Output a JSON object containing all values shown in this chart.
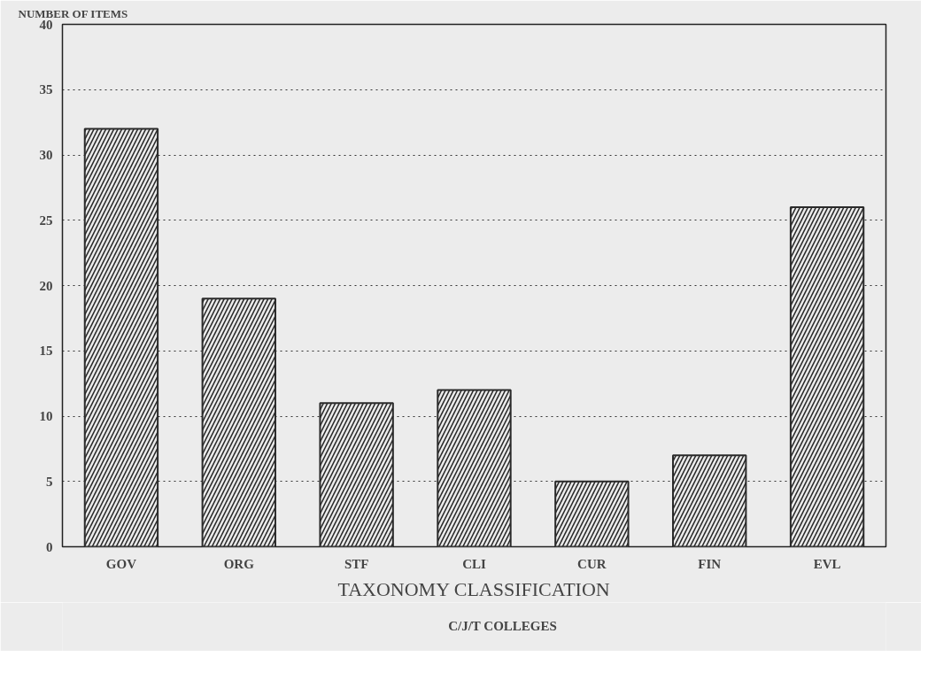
{
  "chart_data": {
    "type": "bar",
    "ylabel": "NUMBER OF ITEMS",
    "xlabel": "TAXONOMY CLASSIFICATION",
    "categories": [
      "GOV",
      "ORG",
      "STF",
      "CLI",
      "CUR",
      "FIN",
      "EVL"
    ],
    "series": [
      {
        "name": "C/J/T COLLEGES",
        "color": "#2a2a2a",
        "values": [
          32,
          19,
          11,
          12,
          5,
          7,
          26
        ]
      }
    ],
    "ylim": [
      0,
      40
    ],
    "yticks": [
      0,
      5,
      10,
      15,
      20,
      25,
      30,
      35,
      40
    ],
    "grid": "y",
    "legend": "bottom"
  }
}
